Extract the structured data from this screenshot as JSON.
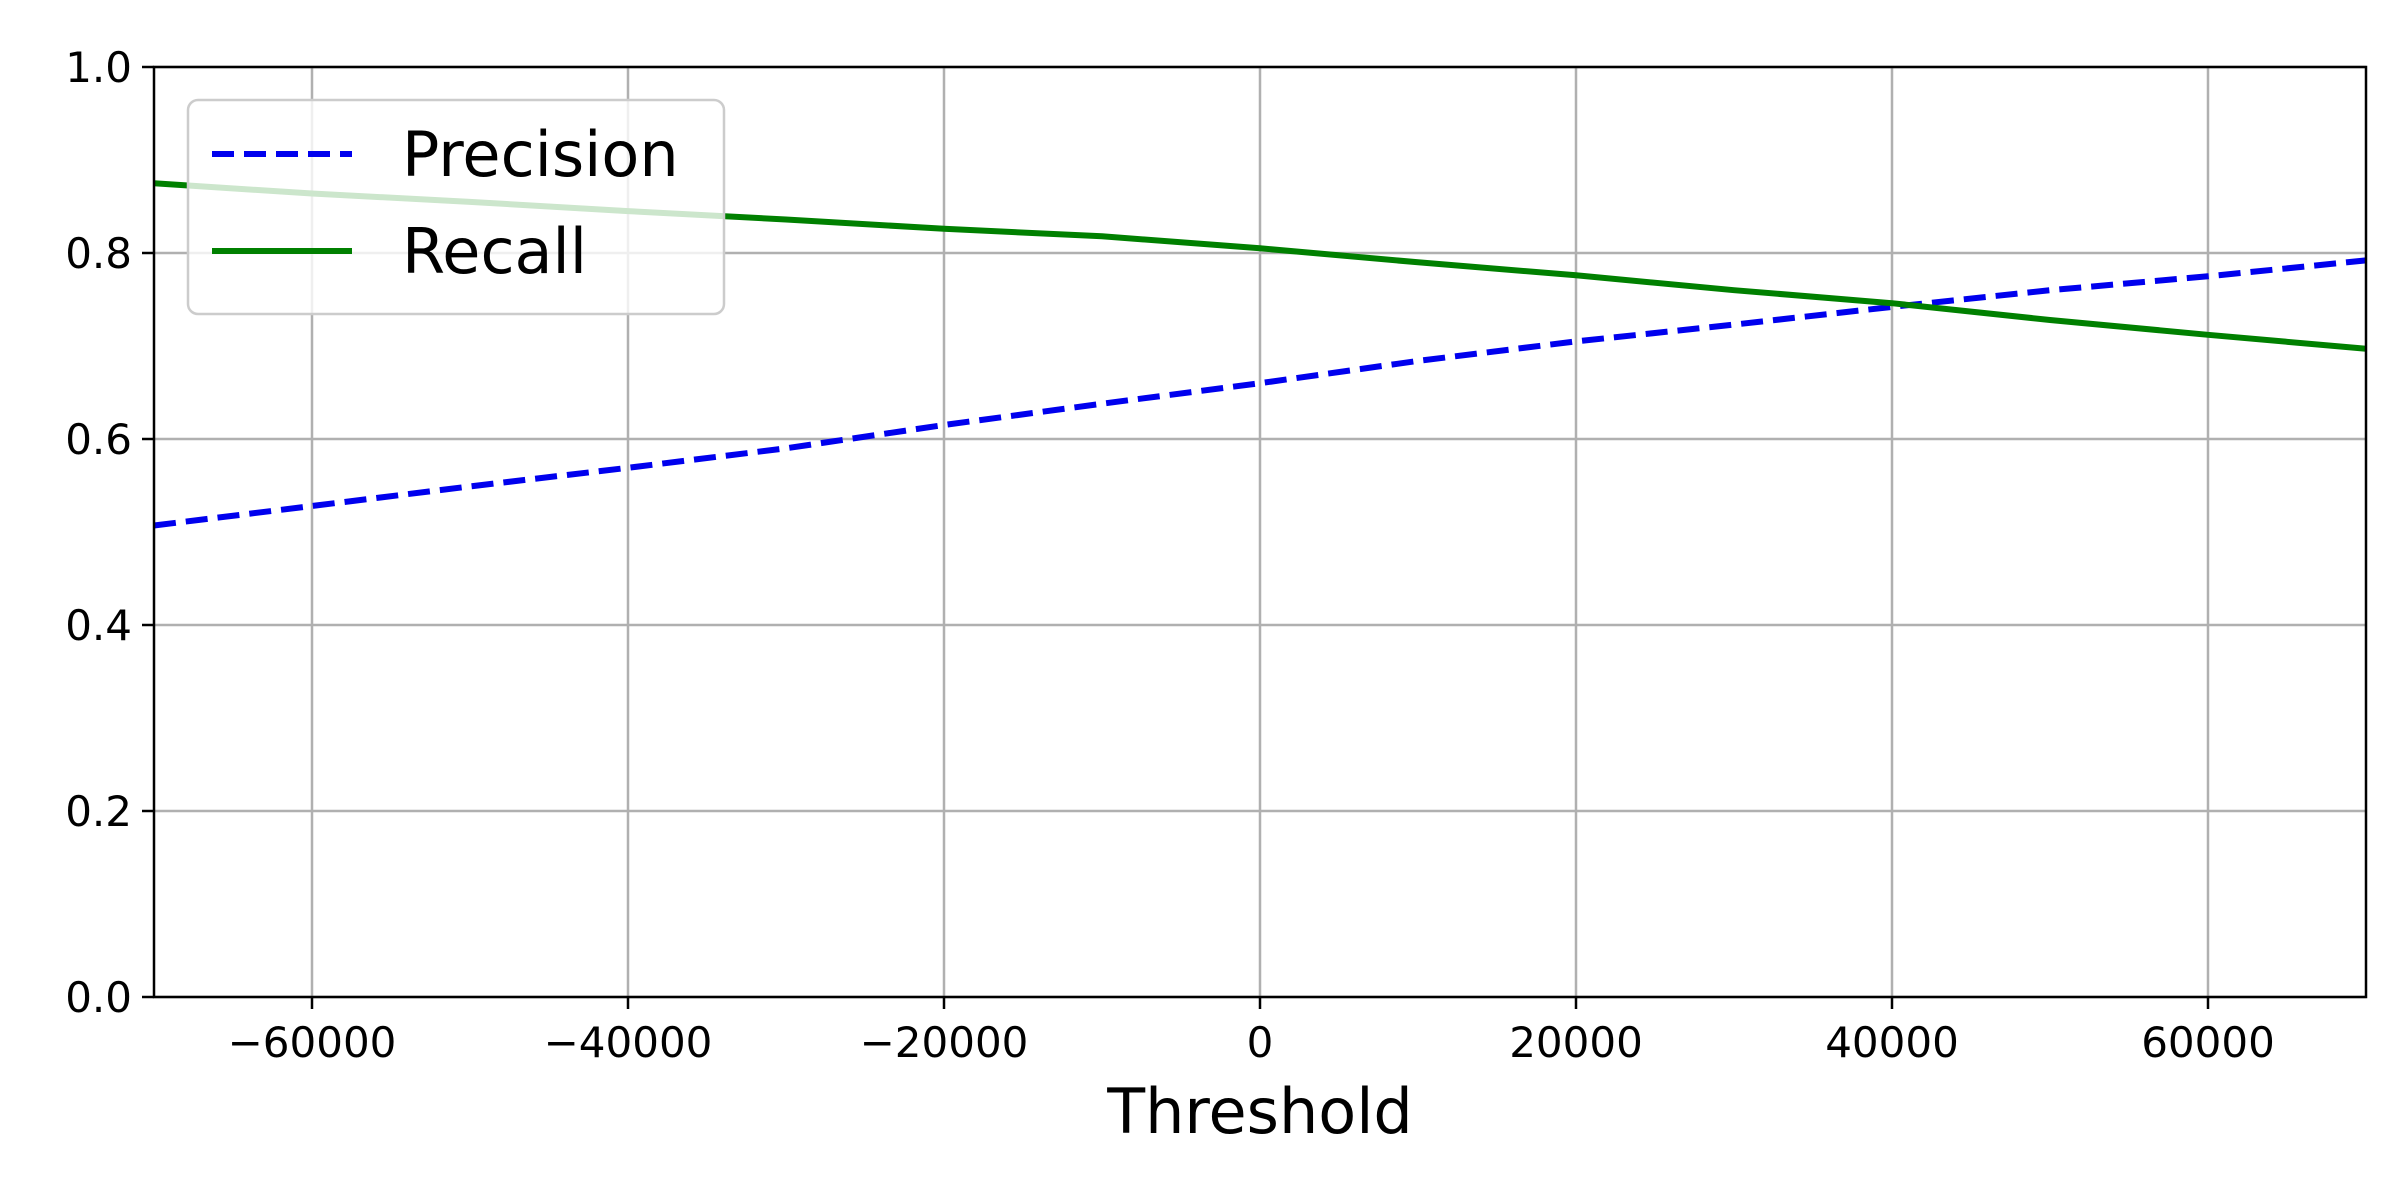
{
  "chart_data": {
    "type": "line",
    "title": "",
    "xlabel": "Threshold",
    "ylabel": "",
    "xlim": [
      -70000,
      70000
    ],
    "ylim": [
      0.0,
      1.0
    ],
    "x_ticks": [
      -60000,
      -40000,
      -20000,
      0,
      20000,
      40000,
      60000
    ],
    "x_tick_labels": [
      "−60000",
      "−40000",
      "−20000",
      "0",
      "20000",
      "40000",
      "60000"
    ],
    "y_ticks": [
      0.0,
      0.2,
      0.4,
      0.6,
      0.8,
      1.0
    ],
    "y_tick_labels": [
      "0.0",
      "0.2",
      "0.4",
      "0.6",
      "0.8",
      "1.0"
    ],
    "grid": true,
    "legend": {
      "placement": "upper-left",
      "entries": [
        "Precision",
        "Recall"
      ]
    },
    "series": [
      {
        "name": "Precision",
        "color": "#0000ee",
        "style": "dashed",
        "x": [
          -70000,
          -60000,
          -50000,
          -40000,
          -30000,
          -20000,
          -10000,
          0,
          10000,
          20000,
          30000,
          40000,
          50000,
          60000,
          70000
        ],
        "y": [
          0.507,
          0.528,
          0.549,
          0.569,
          0.59,
          0.615,
          0.638,
          0.66,
          0.684,
          0.705,
          0.723,
          0.742,
          0.76,
          0.775,
          0.792
        ]
      },
      {
        "name": "Recall",
        "color": "#008000",
        "style": "solid",
        "x": [
          -70000,
          -60000,
          -50000,
          -40000,
          -30000,
          -20000,
          -10000,
          0,
          10000,
          20000,
          30000,
          40000,
          50000,
          60000,
          70000
        ],
        "y": [
          0.875,
          0.864,
          0.855,
          0.845,
          0.836,
          0.826,
          0.818,
          0.805,
          0.79,
          0.776,
          0.76,
          0.746,
          0.728,
          0.712,
          0.697
        ]
      }
    ]
  }
}
